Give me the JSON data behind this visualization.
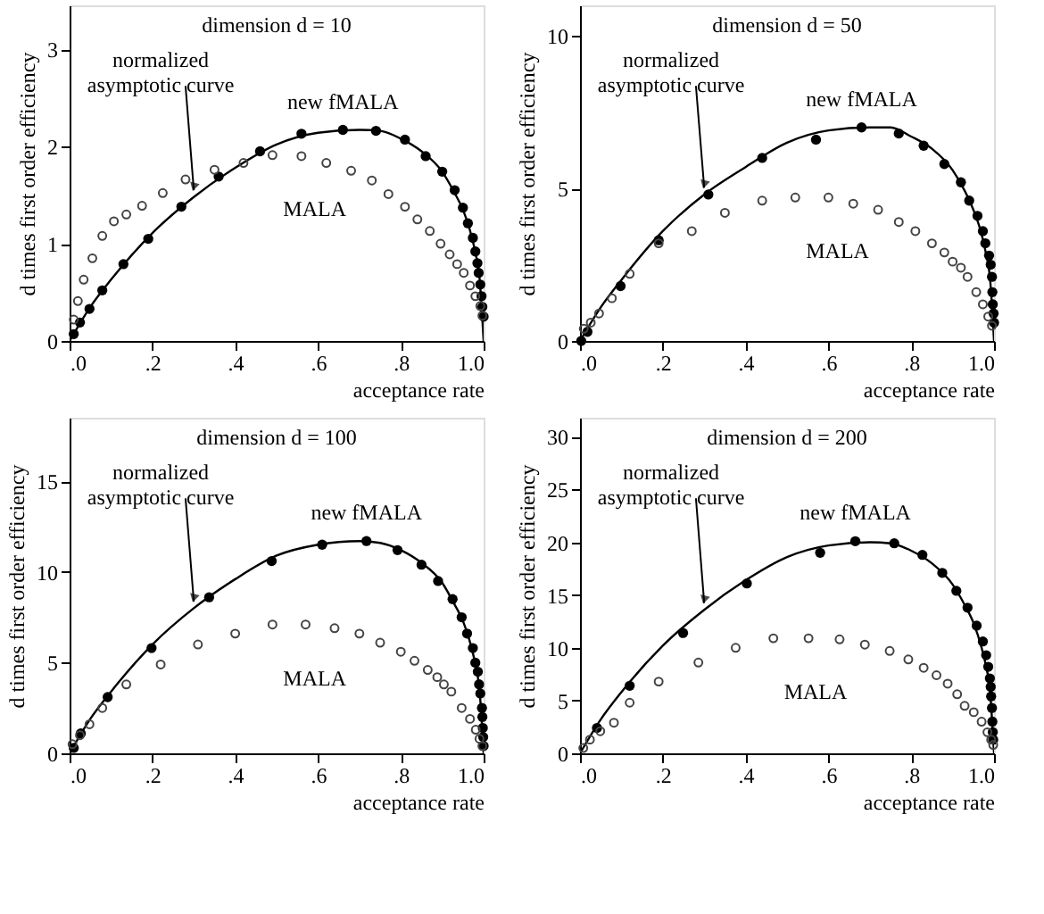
{
  "chart_data": [
    {
      "type": "scatter",
      "title": "dimension d = 10",
      "xlabel": "acceptance rate",
      "ylabel": "d times first order efficiency",
      "xlim": [
        0,
        1
      ],
      "xticks": [
        {
          "value": 0,
          "label": ".0"
        },
        {
          "value": 0.2,
          "label": ".2"
        },
        {
          "value": 0.4,
          "label": ".4"
        },
        {
          "value": 0.6,
          "label": ".6"
        },
        {
          "value": 0.8,
          "label": ".8"
        },
        {
          "value": 1,
          "label": "1.0"
        }
      ],
      "ylim": [
        0,
        3.45
      ],
      "yticks": [
        0,
        1,
        2,
        3
      ],
      "grid": false,
      "series": [
        {
          "name": "normalized asymptotic curve",
          "type": "line",
          "marker": "none",
          "color": "#000000",
          "x": [
            0,
            0.05,
            0.1,
            0.2,
            0.3,
            0.4,
            0.5,
            0.6,
            0.7,
            0.75,
            0.8,
            0.85,
            0.9,
            0.93,
            0.95,
            0.97,
            0.98,
            0.99,
            1.0
          ],
          "values": [
            0,
            0.35,
            0.63,
            1.11,
            1.48,
            1.78,
            2.02,
            2.14,
            2.17,
            2.16,
            2.08,
            1.95,
            1.74,
            1.52,
            1.35,
            1.09,
            0.91,
            0.65,
            0
          ]
        },
        {
          "name": "new fMALA",
          "type": "scatter",
          "marker": "circle",
          "color": "#000000",
          "x": [
            0.01,
            0.025,
            0.048,
            0.079,
            0.13,
            0.19,
            0.27,
            0.36,
            0.46,
            0.56,
            0.66,
            0.74,
            0.81,
            0.86,
            0.9,
            0.93,
            0.95,
            0.962,
            0.974,
            0.98,
            0.985,
            0.988,
            0.992,
            0.995,
            0.997,
            1.0
          ],
          "values": [
            0.07,
            0.19,
            0.33,
            0.52,
            0.79,
            1.05,
            1.38,
            1.69,
            1.95,
            2.13,
            2.17,
            2.16,
            2.07,
            1.9,
            1.74,
            1.55,
            1.37,
            1.21,
            1.06,
            0.92,
            0.8,
            0.7,
            0.58,
            0.46,
            0.35,
            0.25
          ]
        },
        {
          "name": "MALA",
          "type": "scatter",
          "marker": "circle",
          "color": "#444444",
          "x": [
            0.01,
            0.02,
            0.034,
            0.055,
            0.079,
            0.107,
            0.137,
            0.175,
            0.225,
            0.28,
            0.35,
            0.42,
            0.49,
            0.56,
            0.62,
            0.68,
            0.73,
            0.77,
            0.81,
            0.84,
            0.87,
            0.896,
            0.918,
            0.936,
            0.952,
            0.967,
            0.98,
            0.992,
            0.997
          ],
          "values": [
            0.22,
            0.41,
            0.63,
            0.85,
            1.08,
            1.23,
            1.3,
            1.39,
            1.52,
            1.66,
            1.76,
            1.83,
            1.91,
            1.9,
            1.83,
            1.75,
            1.65,
            1.51,
            1.38,
            1.25,
            1.13,
            1.0,
            0.89,
            0.79,
            0.7,
            0.57,
            0.46,
            0.36,
            0.26
          ]
        }
      ]
    },
    {
      "type": "scatter",
      "title": "dimension d = 50",
      "xlabel": "acceptance rate",
      "ylabel": "d times first order efficiency",
      "xlim": [
        0,
        1
      ],
      "xticks": [
        {
          "value": 0,
          "label": ".0"
        },
        {
          "value": 0.2,
          "label": ".2"
        },
        {
          "value": 0.4,
          "label": ".4"
        },
        {
          "value": 0.6,
          "label": ".6"
        },
        {
          "value": 0.8,
          "label": ".8"
        },
        {
          "value": 1,
          "label": "1.0"
        }
      ],
      "ylim": [
        0,
        11
      ],
      "yticks": [
        0,
        5,
        10
      ],
      "grid": false,
      "series": [
        {
          "name": "normalized asymptotic curve",
          "type": "line",
          "marker": "none",
          "color": "#000000",
          "x": [
            0,
            0.05,
            0.1,
            0.2,
            0.3,
            0.4,
            0.5,
            0.6,
            0.7,
            0.75,
            0.8,
            0.85,
            0.9,
            0.93,
            0.95,
            0.97,
            0.98,
            0.99,
            1.0
          ],
          "values": [
            0,
            1.1,
            2.0,
            3.6,
            4.8,
            5.7,
            6.5,
            6.9,
            7.0,
            7.0,
            6.7,
            6.3,
            5.6,
            4.9,
            4.3,
            3.5,
            2.9,
            2.1,
            0
          ]
        },
        {
          "name": "new fMALA",
          "type": "scatter",
          "marker": "circle",
          "color": "#000000",
          "x": [
            0.003,
            0.018,
            0.098,
            0.19,
            0.31,
            0.44,
            0.57,
            0.68,
            0.77,
            0.83,
            0.88,
            0.92,
            0.94,
            0.96,
            0.973,
            0.979,
            0.988,
            0.992,
            0.995,
            0.996,
            0.997,
            0.999,
            1.0
          ],
          "values": [
            0.0,
            0.3,
            1.8,
            3.3,
            4.8,
            6.0,
            6.6,
            7.0,
            6.8,
            6.4,
            5.8,
            5.2,
            4.6,
            4.1,
            3.6,
            3.2,
            2.8,
            2.5,
            2.1,
            1.6,
            1.2,
            0.9,
            0.6
          ]
        },
        {
          "name": "MALA",
          "type": "scatter",
          "marker": "circle",
          "color": "#444444",
          "x": [
            0.009,
            0.026,
            0.046,
            0.077,
            0.12,
            0.19,
            0.27,
            0.35,
            0.44,
            0.52,
            0.6,
            0.66,
            0.72,
            0.77,
            0.81,
            0.85,
            0.88,
            0.9,
            0.92,
            0.936,
            0.957,
            0.973,
            0.986,
            0.995
          ],
          "values": [
            0.4,
            0.6,
            0.9,
            1.4,
            2.2,
            3.2,
            3.6,
            4.2,
            4.6,
            4.7,
            4.7,
            4.5,
            4.3,
            3.9,
            3.6,
            3.2,
            2.9,
            2.6,
            2.4,
            2.1,
            1.6,
            1.2,
            0.8,
            0.5
          ]
        }
      ]
    },
    {
      "type": "scatter",
      "title": "dimension d = 100",
      "xlabel": "acceptance rate",
      "ylabel": "d times first order efficiency",
      "xlim": [
        0,
        1
      ],
      "xticks": [
        {
          "value": 0,
          "label": ".0"
        },
        {
          "value": 0.2,
          "label": ".2"
        },
        {
          "value": 0.4,
          "label": ".4"
        },
        {
          "value": 0.6,
          "label": ".6"
        },
        {
          "value": 0.8,
          "label": ".8"
        },
        {
          "value": 1,
          "label": "1.0"
        }
      ],
      "ylim": [
        0,
        18.5
      ],
      "yticks": [
        0,
        5,
        10,
        15
      ],
      "grid": false,
      "series": [
        {
          "name": "normalized asymptotic curve",
          "type": "line",
          "marker": "none",
          "color": "#000000",
          "x": [
            0,
            0.05,
            0.1,
            0.2,
            0.3,
            0.4,
            0.5,
            0.6,
            0.7,
            0.75,
            0.8,
            0.85,
            0.9,
            0.93,
            0.95,
            0.97,
            0.98,
            0.99,
            1.0
          ],
          "values": [
            0,
            1.9,
            3.4,
            6.0,
            8.0,
            9.6,
            10.9,
            11.5,
            11.7,
            11.6,
            11.2,
            10.5,
            9.4,
            8.2,
            7.3,
            5.9,
            4.9,
            3.5,
            0
          ]
        },
        {
          "name": "new fMALA",
          "type": "scatter",
          "marker": "circle",
          "color": "#000000",
          "x": [
            0.01,
            0.027,
            0.092,
            0.198,
            0.337,
            0.488,
            0.61,
            0.717,
            0.792,
            0.85,
            0.89,
            0.925,
            0.947,
            0.96,
            0.974,
            0.98,
            0.986,
            0.989,
            0.992,
            0.996,
            0.997,
            0.998,
            0.999,
            1.0
          ],
          "values": [
            0.3,
            1.1,
            3.1,
            5.8,
            8.6,
            10.6,
            11.5,
            11.7,
            11.2,
            10.4,
            9.5,
            8.5,
            7.5,
            6.6,
            5.8,
            5.0,
            4.5,
            3.8,
            3.3,
            2.5,
            2.0,
            1.4,
            0.9,
            0.4
          ]
        },
        {
          "name": "MALA",
          "type": "scatter",
          "marker": "circle",
          "color": "#444444",
          "x": [
            0.007,
            0.025,
            0.048,
            0.079,
            0.137,
            0.22,
            0.31,
            0.4,
            0.49,
            0.57,
            0.64,
            0.7,
            0.75,
            0.8,
            0.833,
            0.865,
            0.888,
            0.904,
            0.922,
            0.947,
            0.967,
            0.981,
            0.99,
            0.997
          ],
          "values": [
            0.5,
            1.0,
            1.6,
            2.5,
            3.8,
            4.9,
            6.0,
            6.6,
            7.1,
            7.1,
            6.9,
            6.6,
            6.1,
            5.6,
            5.1,
            4.6,
            4.2,
            3.8,
            3.4,
            2.5,
            1.9,
            1.3,
            0.8,
            0.4
          ]
        }
      ]
    },
    {
      "type": "scatter",
      "title": "dimension d = 200",
      "xlabel": "acceptance rate",
      "ylabel": "d times first order efficiency",
      "xlim": [
        0,
        1
      ],
      "xticks": [
        {
          "value": 0,
          "label": ".0"
        },
        {
          "value": 0.2,
          "label": ".2"
        },
        {
          "value": 0.4,
          "label": ".4"
        },
        {
          "value": 0.6,
          "label": ".6"
        },
        {
          "value": 0.8,
          "label": ".8"
        },
        {
          "value": 1,
          "label": "1.0"
        }
      ],
      "ylim": [
        0,
        31.8
      ],
      "yticks": [
        0,
        5,
        10,
        15,
        20,
        25,
        30
      ],
      "grid": false,
      "series": [
        {
          "name": "normalized asymptotic curve",
          "type": "line",
          "marker": "none",
          "color": "#000000",
          "x": [
            0,
            0.05,
            0.1,
            0.2,
            0.3,
            0.4,
            0.5,
            0.6,
            0.7,
            0.75,
            0.8,
            0.85,
            0.9,
            0.93,
            0.95,
            0.97,
            0.98,
            0.99,
            1.0
          ],
          "values": [
            0,
            3.2,
            5.8,
            10.2,
            13.6,
            16.4,
            18.6,
            19.7,
            20.0,
            19.9,
            19.2,
            18.0,
            16.0,
            14.0,
            12.4,
            10.0,
            8.4,
            6.0,
            0
          ]
        },
        {
          "name": "new fMALA",
          "type": "scatter",
          "marker": "circle",
          "color": "#000000",
          "x": [
            0.041,
            0.12,
            0.249,
            0.403,
            0.58,
            0.665,
            0.759,
            0.827,
            0.875,
            0.909,
            0.936,
            0.958,
            0.973,
            0.981,
            0.986,
            0.99,
            0.992,
            0.993,
            0.995,
            0.996,
            0.997,
            0.998
          ],
          "values": [
            2.4,
            6.4,
            11.4,
            16.1,
            19.0,
            20.1,
            19.9,
            18.8,
            17.1,
            15.4,
            13.8,
            12.1,
            10.6,
            9.3,
            8.2,
            7.1,
            6.3,
            5.4,
            4.3,
            3.0,
            2.0,
            1.3
          ]
        },
        {
          "name": "MALA",
          "type": "scatter",
          "marker": "circle",
          "color": "#444444",
          "x": [
            0.008,
            0.024,
            0.049,
            0.082,
            0.12,
            0.19,
            0.286,
            0.376,
            0.467,
            0.552,
            0.627,
            0.688,
            0.748,
            0.793,
            0.83,
            0.861,
            0.888,
            0.911,
            0.929,
            0.951,
            0.97,
            0.984,
            0.993,
            0.998
          ],
          "values": [
            0.5,
            1.3,
            2.1,
            2.9,
            4.8,
            6.8,
            8.6,
            10.0,
            10.9,
            10.9,
            10.8,
            10.3,
            9.7,
            8.9,
            8.1,
            7.4,
            6.6,
            5.6,
            4.5,
            3.9,
            3.0,
            2.0,
            1.3,
            0.8
          ]
        }
      ]
    }
  ]
}
